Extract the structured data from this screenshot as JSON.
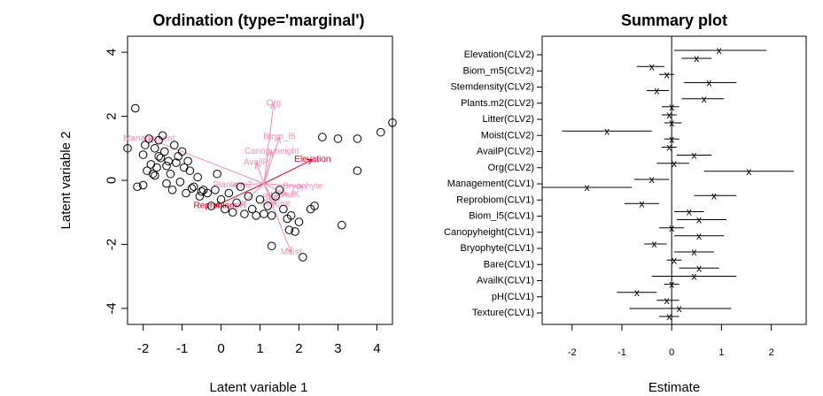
{
  "chart_data": [
    {
      "type": "scatter",
      "title": "Ordination (type='marginal')",
      "xlabel": "Latent variable 1",
      "ylabel": "Latent variable 2",
      "xlim": [
        -2.4,
        4.4
      ],
      "ylim": [
        -4.5,
        4.5
      ],
      "xticks": [
        "-2",
        "-1",
        "0",
        "1",
        "2",
        "3",
        "4"
      ],
      "yticks": [
        "-4",
        "-2",
        "0",
        "2",
        "4"
      ],
      "arrow_origin": [
        1.1,
        -0.1
      ],
      "colors": {
        "significant": "#e8001c",
        "nonsignificant": "#f48cb4"
      },
      "points": [
        [
          -2.4,
          1.0
        ],
        [
          -2.2,
          2.25
        ],
        [
          -2.15,
          -0.2
        ],
        [
          -2.0,
          0.8
        ],
        [
          -1.95,
          1.1
        ],
        [
          -1.9,
          0.3
        ],
        [
          -1.85,
          1.3
        ],
        [
          -1.8,
          0.5
        ],
        [
          -1.75,
          0.2
        ],
        [
          -1.7,
          1.0
        ],
        [
          -1.65,
          0.4
        ],
        [
          -1.6,
          1.25
        ],
        [
          -1.55,
          0.7
        ],
        [
          -1.5,
          1.4
        ],
        [
          -1.45,
          0.9
        ],
        [
          -1.4,
          0.45
        ],
        [
          -1.35,
          0.6
        ],
        [
          -1.3,
          0.2
        ],
        [
          -1.25,
          -0.3
        ],
        [
          -1.2,
          1.1
        ],
        [
          -1.15,
          0.55
        ],
        [
          -1.1,
          0.75
        ],
        [
          -1.05,
          -0.05
        ],
        [
          -1.0,
          0.9
        ],
        [
          -0.95,
          0.4
        ],
        [
          -0.9,
          -0.4
        ],
        [
          -0.85,
          0.6
        ],
        [
          -0.8,
          0.3
        ],
        [
          -0.7,
          -0.2
        ],
        [
          -0.6,
          0.1
        ],
        [
          -0.55,
          -0.5
        ],
        [
          -0.45,
          -0.3
        ],
        [
          -0.35,
          -0.4
        ],
        [
          -0.25,
          -0.8
        ],
        [
          -0.15,
          -0.3
        ],
        [
          -0.1,
          0.2
        ],
        [
          0.0,
          -0.6
        ],
        [
          0.1,
          -0.9
        ],
        [
          0.2,
          -0.4
        ],
        [
          0.3,
          -1.0
        ],
        [
          0.4,
          -0.7
        ],
        [
          0.5,
          -0.2
        ],
        [
          0.6,
          -1.05
        ],
        [
          0.7,
          -0.5
        ],
        [
          0.8,
          -0.9
        ],
        [
          0.9,
          -1.1
        ],
        [
          1.0,
          -0.6
        ],
        [
          1.1,
          -1.05
        ],
        [
          1.2,
          -0.8
        ],
        [
          1.3,
          -1.1
        ],
        [
          1.4,
          -0.5
        ],
        [
          1.5,
          -0.3
        ],
        [
          1.6,
          -0.9
        ],
        [
          1.7,
          -1.2
        ],
        [
          1.8,
          -1.1
        ],
        [
          1.9,
          -1.6
        ],
        [
          1.75,
          -1.55
        ],
        [
          2.0,
          -1.3
        ],
        [
          1.3,
          -2.05
        ],
        [
          2.1,
          -2.4
        ],
        [
          2.3,
          -0.9
        ],
        [
          2.4,
          -0.8
        ],
        [
          2.6,
          1.35
        ],
        [
          3.0,
          1.3
        ],
        [
          3.1,
          -1.4
        ],
        [
          3.5,
          1.3
        ],
        [
          3.5,
          0.3
        ],
        [
          4.1,
          1.5
        ],
        [
          4.4,
          1.8
        ],
        [
          -2.0,
          -0.15
        ],
        [
          -1.7,
          0.15
        ],
        [
          -1.4,
          -0.1
        ],
        [
          -0.75,
          -0.25
        ],
        [
          -0.5,
          -0.35
        ],
        [
          -1.6,
          0.75
        ]
      ],
      "arrows": [
        {
          "label": "Elevation",
          "x": 2.35,
          "y": 0.65,
          "significant": true
        },
        {
          "label": "Reprobiom",
          "x": -0.15,
          "y": -0.8,
          "significant": true
        },
        {
          "label": "Org",
          "x": 1.35,
          "y": 2.4,
          "significant": false
        },
        {
          "label": "Management",
          "x": -1.85,
          "y": 1.3,
          "significant": false
        },
        {
          "label": "Biom_l5",
          "x": 1.5,
          "y": 1.35,
          "significant": false
        },
        {
          "label": "Canopyheight",
          "x": 1.3,
          "y": 0.9,
          "significant": false
        },
        {
          "label": "AvailP",
          "x": 0.9,
          "y": 0.55,
          "significant": false
        },
        {
          "label": "Moist",
          "x": 1.8,
          "y": -2.25,
          "significant": false
        },
        {
          "label": "Plants.m2",
          "x": 0.3,
          "y": -0.15,
          "significant": false
        },
        {
          "label": "Bryophyte",
          "x": 2.1,
          "y": -0.2,
          "significant": false
        },
        {
          "label": "Bare",
          "x": 1.3,
          "y": -0.55,
          "significant": false
        },
        {
          "label": "AvailK",
          "x": 1.7,
          "y": -0.45,
          "significant": false
        },
        {
          "label": "pH",
          "x": 0.5,
          "y": -0.8,
          "significant": false
        },
        {
          "label": "Texture",
          "x": 1.4,
          "y": -0.75,
          "significant": false
        }
      ]
    },
    {
      "type": "forest",
      "title": "Summary plot",
      "xlabel": "Estimate",
      "xlim": [
        -2.6,
        2.7
      ],
      "xticks": [
        "-2",
        "-1",
        "0",
        "1",
        "2"
      ],
      "reference_line": 0,
      "groups": [
        {
          "label": "Elevation(CLV2)",
          "est": [
            0.95,
            0.5
          ],
          "lo": [
            0.05,
            0.2
          ],
          "hi": [
            1.9,
            0.8
          ]
        },
        {
          "label": "Biom_m5(CLV2)",
          "est": [
            -0.4,
            -0.1
          ],
          "lo": [
            -0.7,
            -0.25
          ],
          "hi": [
            -0.15,
            0.05
          ]
        },
        {
          "label": "Stemdensity(CLV2)",
          "est": [
            0.75,
            -0.3
          ],
          "lo": [
            0.25,
            -0.5
          ],
          "hi": [
            1.3,
            -0.05
          ]
        },
        {
          "label": "Plants.m2(CLV2)",
          "est": [
            0.65,
            0.0
          ],
          "lo": [
            0.2,
            -0.2
          ],
          "hi": [
            1.05,
            0.15
          ]
        },
        {
          "label": "Litter(CLV2)",
          "est": [
            -0.05,
            0.0
          ],
          "lo": [
            -0.2,
            -0.15
          ],
          "hi": [
            0.1,
            0.2
          ]
        },
        {
          "label": "Moist(CLV2)",
          "est": [
            -1.3,
            0.0
          ],
          "lo": [
            -2.2,
            -0.15
          ],
          "hi": [
            -0.4,
            0.15
          ]
        },
        {
          "label": "AvailP(CLV2)",
          "est": [
            -0.05,
            0.45
          ],
          "lo": [
            -0.2,
            0.1
          ],
          "hi": [
            0.1,
            0.8
          ]
        },
        {
          "label": "Org(CLV2)",
          "est": [
            0.05,
            1.55
          ],
          "lo": [
            -0.3,
            0.65
          ],
          "hi": [
            0.35,
            2.45
          ]
        },
        {
          "label": "Management(CLV1)",
          "est": [
            -0.4,
            -1.7
          ],
          "lo": [
            -0.75,
            -2.6
          ],
          "hi": [
            -0.05,
            -0.8
          ]
        },
        {
          "label": "Reprobiom(CLV1)",
          "est": [
            0.85,
            -0.6
          ],
          "lo": [
            0.45,
            -0.95
          ],
          "hi": [
            1.3,
            -0.25
          ]
        },
        {
          "label": "Biom_l5(CLV1)",
          "est": [
            0.35,
            0.55
          ],
          "lo": [
            0.05,
            0.1
          ],
          "hi": [
            0.65,
            1.1
          ]
        },
        {
          "label": "Canopyheight(CLV1)",
          "est": [
            0.0,
            0.55
          ],
          "lo": [
            -0.25,
            0.05
          ],
          "hi": [
            0.25,
            1.05
          ]
        },
        {
          "label": "Bryophyte(CLV1)",
          "est": [
            -0.35,
            0.45
          ],
          "lo": [
            -0.55,
            0.05
          ],
          "hi": [
            -0.1,
            0.85
          ]
        },
        {
          "label": "Bare(CLV1)",
          "est": [
            0.05,
            0.55
          ],
          "lo": [
            -0.1,
            0.15
          ],
          "hi": [
            0.2,
            0.95
          ]
        },
        {
          "label": "AvailK(CLV1)",
          "est": [
            0.45,
            0.0
          ],
          "lo": [
            -0.4,
            -0.15
          ],
          "hi": [
            1.3,
            0.15
          ]
        },
        {
          "label": "pH(CLV1)",
          "est": [
            -0.7,
            -0.1
          ],
          "lo": [
            -1.1,
            -0.3
          ],
          "hi": [
            -0.3,
            0.15
          ]
        },
        {
          "label": "Texture(CLV1)",
          "est": [
            0.15,
            -0.05
          ],
          "lo": [
            -0.85,
            -0.25
          ],
          "hi": [
            1.2,
            0.15
          ]
        }
      ]
    }
  ]
}
